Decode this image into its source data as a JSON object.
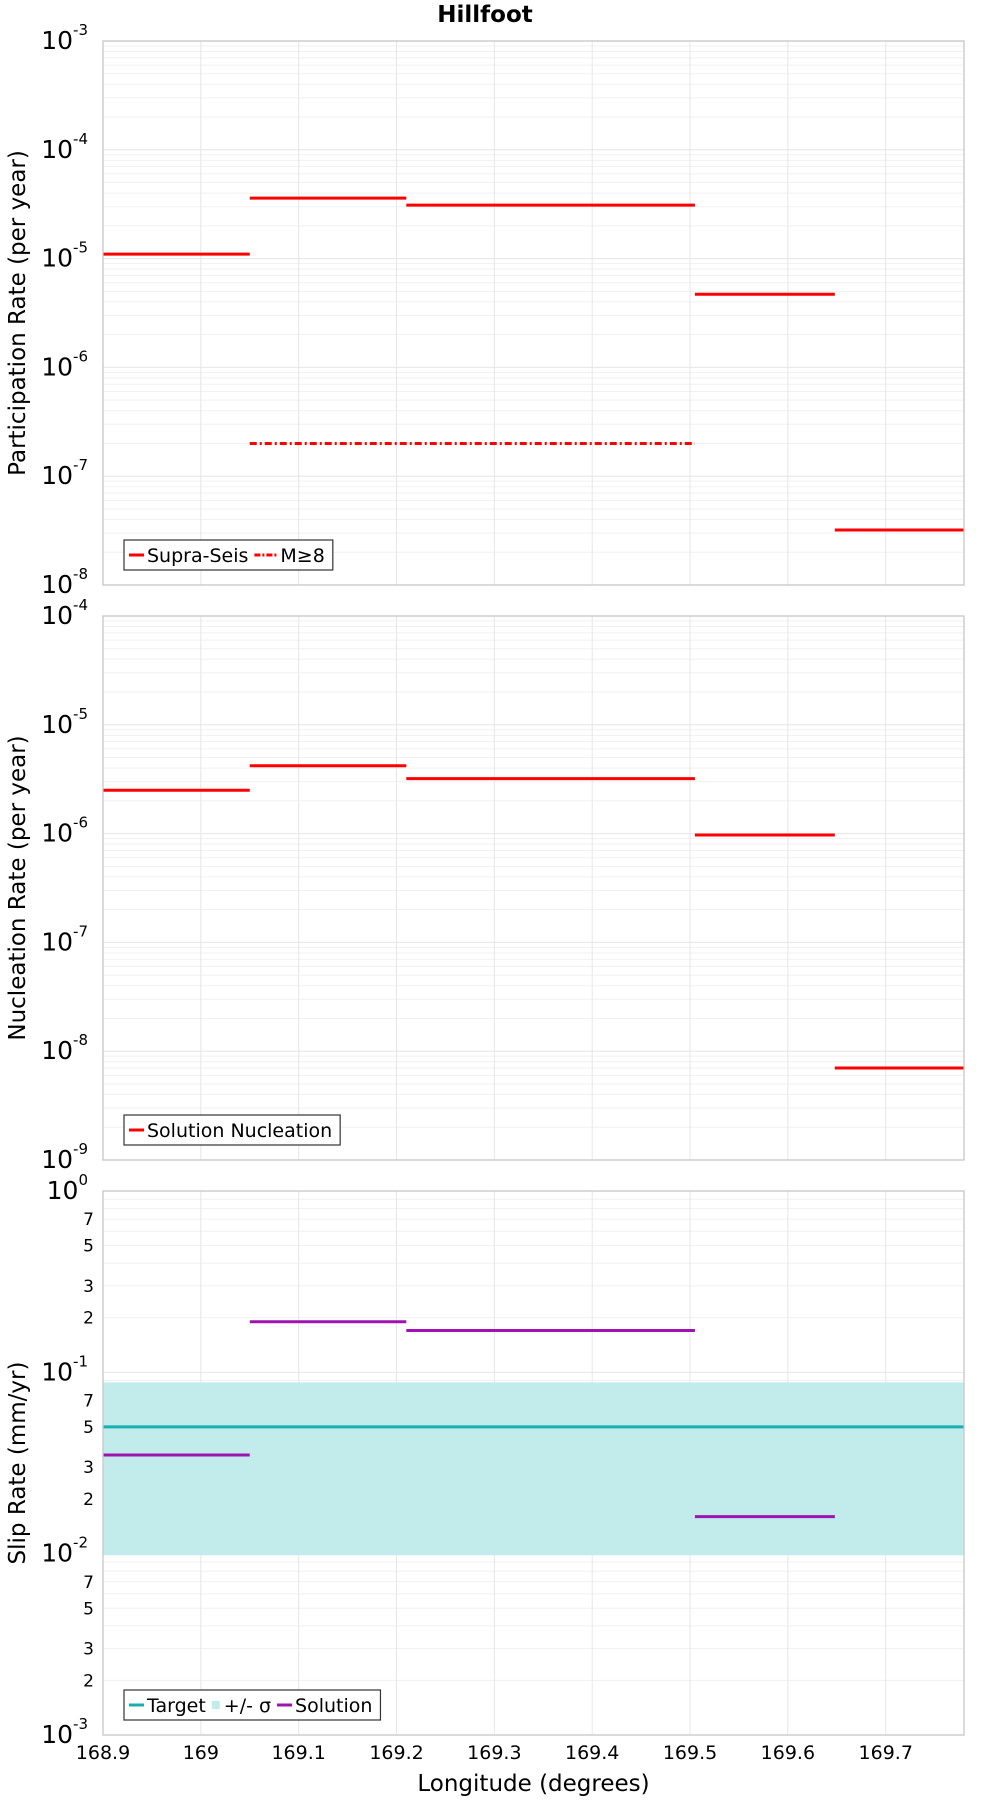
{
  "title": "Hillfoot",
  "chart_data": [
    {
      "type": "line",
      "panel": "participation",
      "ylabel": "Participation Rate (per year)",
      "xlabel": "",
      "yscale": "log",
      "ylim": [
        1e-08,
        0.001
      ],
      "xlim": [
        168.9,
        169.78
      ],
      "grid": true,
      "legend_position": "bottom-left",
      "series": [
        {
          "name": "Supra-Seis",
          "color": "#ff0000",
          "style": "solid",
          "segments": [
            {
              "x": [
                168.9,
                169.05
              ],
              "y": 1.1e-05
            },
            {
              "x": [
                169.05,
                169.21
              ],
              "y": 3.6e-05
            },
            {
              "x": [
                169.21,
                169.505
              ],
              "y": 3.1e-05
            },
            {
              "x": [
                169.505,
                169.648
              ],
              "y": 4.7e-06
            },
            {
              "x": [
                169.648,
                169.78
              ],
              "y": 3.2e-08
            }
          ]
        },
        {
          "name": "M≥8",
          "color": "#ff0000",
          "style": "dash-dot",
          "segments": [
            {
              "x": [
                169.05,
                169.505
              ],
              "y": 2e-07
            }
          ]
        }
      ]
    },
    {
      "type": "line",
      "panel": "nucleation",
      "ylabel": "Nucleation Rate (per year)",
      "xlabel": "",
      "yscale": "log",
      "ylim": [
        1e-09,
        0.0001
      ],
      "xlim": [
        168.9,
        169.78
      ],
      "grid": true,
      "legend_position": "bottom-left",
      "series": [
        {
          "name": "Solution Nucleation",
          "color": "#ff0000",
          "style": "solid",
          "segments": [
            {
              "x": [
                168.9,
                169.05
              ],
              "y": 2.5e-06
            },
            {
              "x": [
                169.05,
                169.21
              ],
              "y": 4.2e-06
            },
            {
              "x": [
                169.21,
                169.505
              ],
              "y": 3.2e-06
            },
            {
              "x": [
                169.505,
                169.648
              ],
              "y": 9.7e-07
            },
            {
              "x": [
                169.648,
                169.78
              ],
              "y": 7e-09
            }
          ]
        }
      ]
    },
    {
      "type": "line",
      "panel": "slip",
      "ylabel": "Slip Rate (mm/yr)",
      "xlabel": "Longitude (degrees)",
      "yscale": "log",
      "ylim": [
        0.001,
        1
      ],
      "xlim": [
        168.9,
        169.78
      ],
      "grid": true,
      "legend_position": "bottom-left",
      "x_ticks": [
        "168.9",
        "169",
        "169.1",
        "169.2",
        "169.3",
        "169.4",
        "169.5",
        "169.6",
        "169.7"
      ],
      "band": {
        "name": "+/- σ",
        "color": "#c2ecec",
        "low": 0.0098,
        "high": 0.088
      },
      "series": [
        {
          "name": "Target",
          "color": "#1aaeb0",
          "style": "solid",
          "segments": [
            {
              "x": [
                168.9,
                169.78
              ],
              "y": 0.05
            }
          ]
        },
        {
          "name": "Solution",
          "color": "#9e14b0",
          "style": "solid",
          "segments": [
            {
              "x": [
                168.9,
                169.05
              ],
              "y": 0.035
            },
            {
              "x": [
                169.05,
                169.21
              ],
              "y": 0.19
            },
            {
              "x": [
                169.21,
                169.505
              ],
              "y": 0.17
            },
            {
              "x": [
                169.505,
                169.648
              ],
              "y": 0.016
            }
          ]
        }
      ]
    }
  ]
}
